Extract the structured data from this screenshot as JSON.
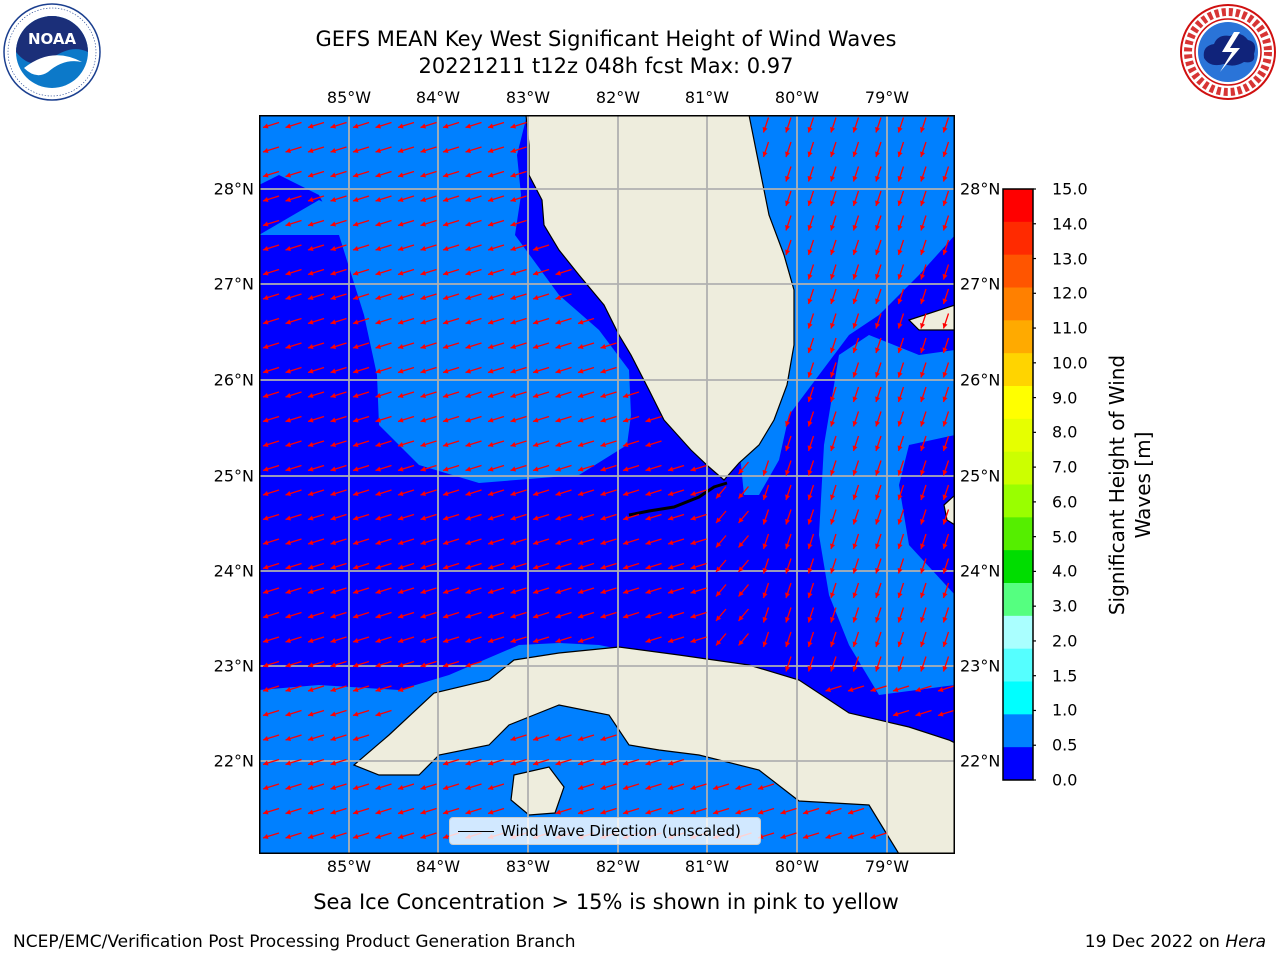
{
  "header": {
    "title_line1": "GEFS MEAN Key West Significant Height of Wind Waves",
    "title_line2": "20221211 t12z 048h fcst   Max: 0.97"
  },
  "logos": {
    "left": {
      "name": "noaa-logo",
      "text": "NOAA",
      "ring_text": "NATIONAL OCEANIC AND ATMOSPHERIC ADMINISTRATION · U.S. DEPARTMENT OF COMMERCE"
    },
    "right": {
      "name": "national-weather-service-logo",
      "ring_text": "NATIONAL WEATHER SERVICE"
    }
  },
  "map": {
    "lon_ticks": [
      "85°W",
      "84°W",
      "83°W",
      "82°W",
      "81°W",
      "80°W",
      "79°W"
    ],
    "lat_ticks": [
      "28°N",
      "27°N",
      "26°N",
      "25°N",
      "24°N",
      "23°N",
      "22°N"
    ],
    "extent": {
      "lon_min": -86.0,
      "lon_max": -78.3,
      "lat_min": 21.0,
      "lat_max": 28.75
    },
    "land_color": "#eeeddd",
    "ocean_colors": {
      "0.0-0.5": "#0000ff",
      "0.5-1.0": "#0080ff"
    },
    "arrow_color": "#ff0000",
    "arrow_direction": "wind waves heading generally west to southwest",
    "legend": "Wind Wave Direction (unscaled)"
  },
  "colorbar": {
    "label_line1": "Significant Height of Wind",
    "label_line2": "Waves [m]",
    "ticks": [
      "15.0",
      "14.0",
      "13.0",
      "12.0",
      "11.0",
      "10.0",
      "9.0",
      "8.0",
      "7.0",
      "6.0",
      "5.0",
      "4.0",
      "3.0",
      "2.0",
      "1.5",
      "1.0",
      "0.5",
      "0.0"
    ],
    "colors": [
      "#ff0000",
      "#ff2a00",
      "#ff5500",
      "#ff8000",
      "#ffaa00",
      "#ffd400",
      "#ffff00",
      "#e6ff00",
      "#ccff00",
      "#99ff00",
      "#55ee00",
      "#00dd00",
      "#55ff80",
      "#aaffff",
      "#55ffff",
      "#00ffff",
      "#0080ff",
      "#0000ff"
    ]
  },
  "caption": "Sea Ice Concentration > 15% is shown in pink to yellow",
  "footer": {
    "left": "NCEP/EMC/Verification Post Processing Product Generation Branch",
    "right_date": "19 Dec 2022 on ",
    "right_machine": "Hera"
  }
}
